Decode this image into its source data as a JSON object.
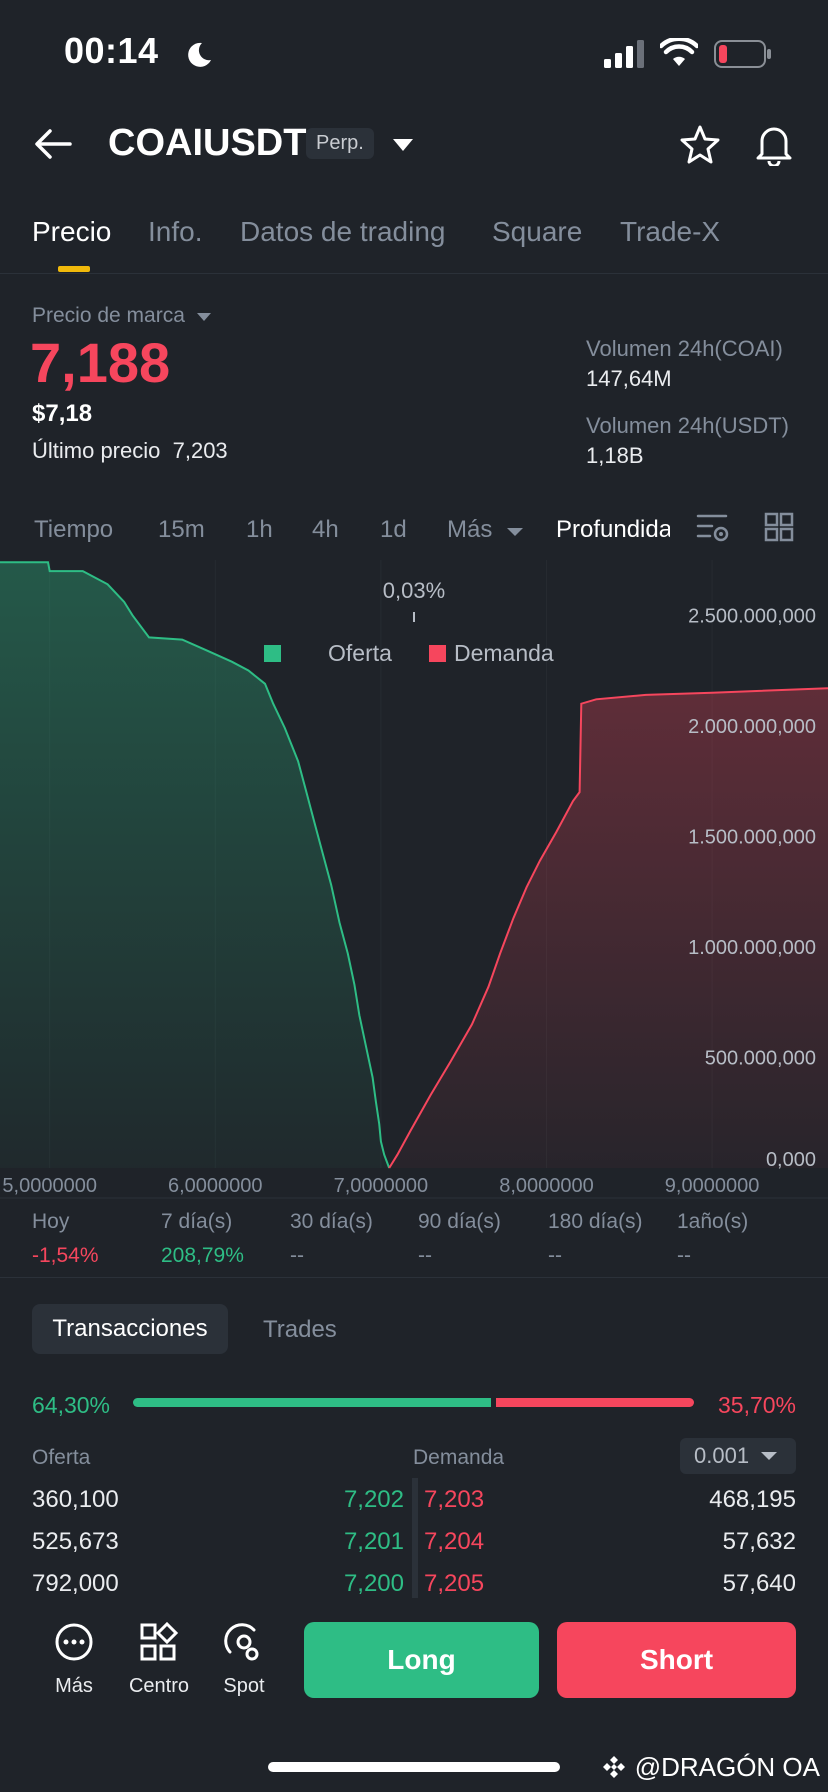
{
  "status": {
    "time": "00:14"
  },
  "header": {
    "pair": "COAIUSDT",
    "badge": "Perp."
  },
  "tabs": [
    {
      "label": "Precio"
    },
    {
      "label": "Info."
    },
    {
      "label": "Datos de trading"
    },
    {
      "label": "Square"
    },
    {
      "label": "Trade-X"
    }
  ],
  "price": {
    "mark_label": "Precio de marca",
    "mark_price": "7,188",
    "usd_price": "$7,18",
    "last_price_label": "Último precio",
    "last_price": "7,203",
    "vol_coai_label": "Volumen 24h(COAI)",
    "vol_coai": "147,64M",
    "vol_usdt_label": "Volumen 24h(USDT)",
    "vol_usdt": "1,18B"
  },
  "intervals": [
    "Tiempo",
    "15m",
    "1h",
    "4h",
    "1d",
    "Más",
    "Profundidad"
  ],
  "chart_data": {
    "type": "area",
    "spread_label": "0,03%",
    "legend": [
      "Oferta",
      "Demanda"
    ],
    "legend_placement": "top-center",
    "x_ticks": [
      "5,0000000",
      "6,0000000",
      "7,0000000",
      "8,0000000",
      "9,0000000"
    ],
    "y_ticks": [
      "0,000",
      "500.000,000",
      "1.000.000,000",
      "1.500.000,000",
      "2.000.000,000",
      "2.500.000,000"
    ],
    "xlim": [
      4.7,
      9.7
    ],
    "ylim": [
      0,
      2750000000
    ],
    "colors": {
      "bid": "#2ebd85",
      "ask": "#f6465d"
    },
    "series": [
      {
        "name": "Oferta",
        "points": [
          [
            4.7,
            2740000000
          ],
          [
            4.99,
            2740000000
          ],
          [
            5.0,
            2700000000
          ],
          [
            5.2,
            2700000000
          ],
          [
            5.35,
            2640000000
          ],
          [
            5.45,
            2560000000
          ],
          [
            5.5,
            2500000000
          ],
          [
            5.6,
            2400000000
          ],
          [
            5.8,
            2390000000
          ],
          [
            5.95,
            2340000000
          ],
          [
            6.1,
            2290000000
          ],
          [
            6.2,
            2250000000
          ],
          [
            6.3,
            2190000000
          ],
          [
            6.35,
            2100000000
          ],
          [
            6.42,
            1990000000
          ],
          [
            6.5,
            1840000000
          ],
          [
            6.55,
            1700000000
          ],
          [
            6.6,
            1560000000
          ],
          [
            6.65,
            1420000000
          ],
          [
            6.7,
            1280000000
          ],
          [
            6.75,
            1110000000
          ],
          [
            6.8,
            970000000
          ],
          [
            6.84,
            830000000
          ],
          [
            6.87,
            690000000
          ],
          [
            6.91,
            550000000
          ],
          [
            6.95,
            410000000
          ],
          [
            6.97,
            300000000
          ],
          [
            6.99,
            200000000
          ],
          [
            7.0,
            120000000
          ],
          [
            7.02,
            60000000
          ],
          [
            7.05,
            0
          ]
        ]
      },
      {
        "name": "Demanda",
        "points": [
          [
            7.05,
            0
          ],
          [
            7.1,
            60000000
          ],
          [
            7.18,
            170000000
          ],
          [
            7.3,
            330000000
          ],
          [
            7.42,
            480000000
          ],
          [
            7.55,
            650000000
          ],
          [
            7.65,
            820000000
          ],
          [
            7.72,
            970000000
          ],
          [
            7.8,
            1130000000
          ],
          [
            7.88,
            1270000000
          ],
          [
            7.96,
            1390000000
          ],
          [
            8.06,
            1520000000
          ],
          [
            8.16,
            1660000000
          ],
          [
            8.2,
            1700000000
          ],
          [
            8.21,
            2100000000
          ],
          [
            8.3,
            2120000000
          ],
          [
            8.6,
            2140000000
          ],
          [
            9.0,
            2150000000
          ],
          [
            9.7,
            2170000000
          ]
        ]
      }
    ]
  },
  "stats": [
    {
      "label": "Hoy",
      "value": "-1,54%",
      "color": "#f6465d"
    },
    {
      "label": "7 día(s)",
      "value": "208,79%",
      "color": "#2ebd85"
    },
    {
      "label": "30 día(s)",
      "value": "--",
      "color": "#848e9c"
    },
    {
      "label": "90 día(s)",
      "value": "--",
      "color": "#848e9c"
    },
    {
      "label": "180 día(s)",
      "value": "--",
      "color": "#848e9c"
    },
    {
      "label": "1año(s)",
      "value": "--",
      "color": "#848e9c"
    }
  ],
  "orderbook": {
    "tabs": [
      "Transacciones",
      "Trades"
    ],
    "bid_ratio": "64,30%",
    "ask_ratio": "35,70%",
    "bid_header": "Oferta",
    "ask_header": "Demanda",
    "precision": "0.001",
    "rows": [
      {
        "bid_qty": "360,100",
        "bid_price": "7,202",
        "ask_price": "7,203",
        "ask_qty": "468,195"
      },
      {
        "bid_qty": "525,673",
        "bid_price": "7,201",
        "ask_price": "7,204",
        "ask_qty": "57,632"
      },
      {
        "bid_qty": "792,000",
        "bid_price": "7,200",
        "ask_price": "7,205",
        "ask_qty": "57,640"
      }
    ]
  },
  "bottom_nav": {
    "items": [
      {
        "label": "Más",
        "icon": "more-icon"
      },
      {
        "label": "Centro",
        "icon": "grid-icon"
      },
      {
        "label": "Spot",
        "icon": "spot-icon"
      }
    ],
    "long_label": "Long",
    "short_label": "Short"
  },
  "watermark": "@DRAGÓN OA"
}
